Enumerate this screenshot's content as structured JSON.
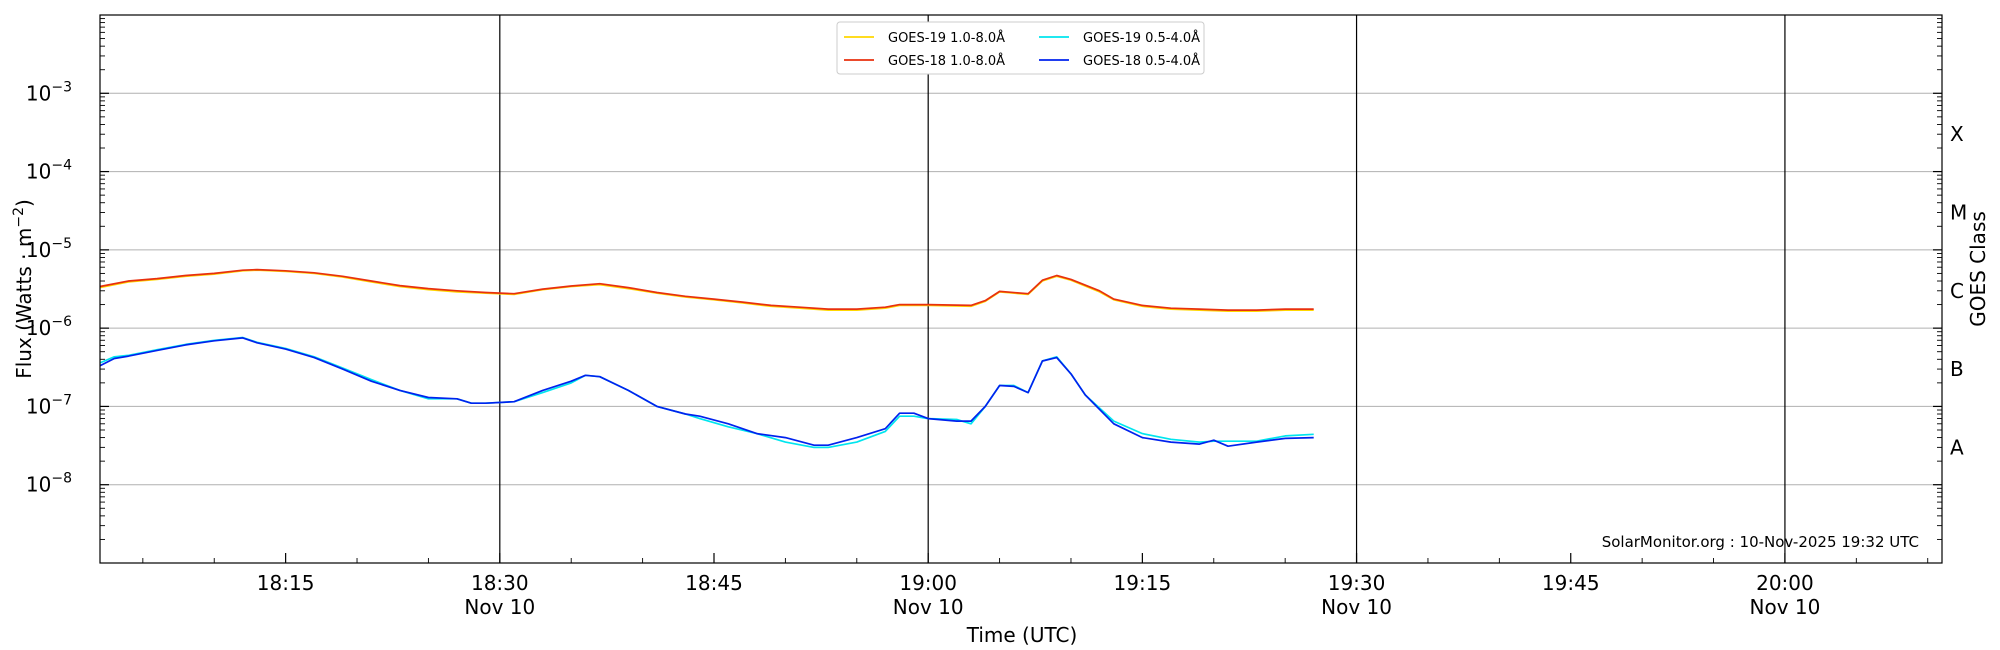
{
  "chart_data": {
    "type": "line",
    "xlabel": "Time (UTC)",
    "ylabel": "Flux (Watts · m",
    "ylabel_exp": "−2",
    "right_axis_label": "GOES Class",
    "credit": "SolarMonitor.org : 10-Nov-2025 19:32 UTC",
    "y_scale": "log",
    "xlim": [
      "18:02",
      "20:11"
    ],
    "ylim": [
      1e-09,
      0.01
    ],
    "grid": "horizontal at decades; vertical lines at half-hours",
    "legend_position": "top-center",
    "x_ticks": [
      {
        "time": "18:15",
        "label": "18:15",
        "sublabel": ""
      },
      {
        "time": "18:30",
        "label": "18:30",
        "sublabel": "Nov 10"
      },
      {
        "time": "18:45",
        "label": "18:45",
        "sublabel": ""
      },
      {
        "time": "19:00",
        "label": "19:00",
        "sublabel": "Nov 10"
      },
      {
        "time": "19:15",
        "label": "19:15",
        "sublabel": ""
      },
      {
        "time": "19:30",
        "label": "19:30",
        "sublabel": "Nov 10"
      },
      {
        "time": "19:45",
        "label": "19:45",
        "sublabel": ""
      },
      {
        "time": "20:00",
        "label": "20:00",
        "sublabel": "Nov 10"
      }
    ],
    "vertical_lines": [
      "18:30",
      "19:00",
      "19:30",
      "20:00"
    ],
    "y_ticks": [
      {
        "value": 1e-08,
        "mantissa": "10",
        "exponent": "−8"
      },
      {
        "value": 1e-07,
        "mantissa": "10",
        "exponent": "−7"
      },
      {
        "value": 1e-06,
        "mantissa": "10",
        "exponent": "−6"
      },
      {
        "value": 1e-05,
        "mantissa": "10",
        "exponent": "−5"
      },
      {
        "value": 0.0001,
        "mantissa": "10",
        "exponent": "−4"
      },
      {
        "value": 0.001,
        "mantissa": "10",
        "exponent": "−3"
      }
    ],
    "goes_classes": [
      {
        "label": "X",
        "flux": 0.0003
      },
      {
        "label": "M",
        "flux": 3e-05
      },
      {
        "label": "C",
        "flux": 3e-06
      },
      {
        "label": "B",
        "flux": 3e-07
      },
      {
        "label": "A",
        "flux": 3e-08
      }
    ],
    "series": [
      {
        "name": "GOES-19 1.0-8.0Å",
        "color": "#ffd700",
        "x": [
          "18:02",
          "18:04",
          "18:06",
          "18:08",
          "18:10",
          "18:12",
          "18:13",
          "18:15",
          "18:17",
          "18:19",
          "18:21",
          "18:23",
          "18:25",
          "18:27",
          "18:29",
          "18:31",
          "18:33",
          "18:35",
          "18:37",
          "18:39",
          "18:41",
          "18:43",
          "18:45",
          "18:47",
          "18:49",
          "18:51",
          "18:53",
          "18:55",
          "18:57",
          "18:58",
          "19:00",
          "19:03",
          "19:04",
          "19:05",
          "19:07",
          "19:08",
          "19:09",
          "19:10",
          "19:12",
          "19:13",
          "19:15",
          "19:17",
          "19:19",
          "19:21",
          "19:23",
          "19:25",
          "19:27"
        ],
        "y": [
          3.3e-06,
          3.9e-06,
          4.2e-06,
          4.6e-06,
          4.9e-06,
          5.4e-06,
          5.5e-06,
          5.3e-06,
          5e-06,
          4.5e-06,
          3.9e-06,
          3.4e-06,
          3.1e-06,
          2.9e-06,
          2.8e-06,
          2.7e-06,
          3.1e-06,
          3.4e-06,
          3.6e-06,
          3.2e-06,
          2.8e-06,
          2.5e-06,
          2.3e-06,
          2.1e-06,
          1.9e-06,
          1.8e-06,
          1.7e-06,
          1.7e-06,
          1.8e-06,
          1.95e-06,
          1.95e-06,
          1.9e-06,
          2.2e-06,
          2.9e-06,
          2.7e-06,
          4e-06,
          4.6e-06,
          4.1e-06,
          2.9e-06,
          2.3e-06,
          1.9e-06,
          1.75e-06,
          1.7e-06,
          1.65e-06,
          1.65e-06,
          1.7e-06,
          1.7e-06
        ]
      },
      {
        "name": "GOES-18 1.0-8.0Å",
        "color": "#e8300e",
        "x": [
          "18:02",
          "18:04",
          "18:06",
          "18:08",
          "18:10",
          "18:12",
          "18:13",
          "18:15",
          "18:17",
          "18:19",
          "18:21",
          "18:23",
          "18:25",
          "18:27",
          "18:29",
          "18:31",
          "18:33",
          "18:35",
          "18:37",
          "18:39",
          "18:41",
          "18:43",
          "18:45",
          "18:47",
          "18:49",
          "18:51",
          "18:53",
          "18:55",
          "18:57",
          "18:58",
          "19:00",
          "19:03",
          "19:04",
          "19:05",
          "19:07",
          "19:08",
          "19:09",
          "19:10",
          "19:12",
          "19:13",
          "19:15",
          "19:17",
          "19:19",
          "19:21",
          "19:23",
          "19:25",
          "19:27"
        ],
        "y": [
          3.4e-06,
          4e-06,
          4.3e-06,
          4.7e-06,
          5e-06,
          5.5e-06,
          5.6e-06,
          5.4e-06,
          5.1e-06,
          4.6e-06,
          4e-06,
          3.5e-06,
          3.2e-06,
          3e-06,
          2.85e-06,
          2.75e-06,
          3.15e-06,
          3.45e-06,
          3.7e-06,
          3.3e-06,
          2.85e-06,
          2.55e-06,
          2.35e-06,
          2.15e-06,
          1.95e-06,
          1.85e-06,
          1.75e-06,
          1.75e-06,
          1.85e-06,
          2e-06,
          2e-06,
          1.95e-06,
          2.25e-06,
          2.95e-06,
          2.75e-06,
          4.1e-06,
          4.7e-06,
          4.2e-06,
          3e-06,
          2.35e-06,
          1.95e-06,
          1.8e-06,
          1.75e-06,
          1.7e-06,
          1.7e-06,
          1.75e-06,
          1.75e-06
        ]
      },
      {
        "name": "GOES-19 0.5-4.0Å",
        "color": "#00e5ee",
        "x": [
          "18:02",
          "18:03",
          "18:04",
          "18:06",
          "18:08",
          "18:10",
          "18:12",
          "18:13",
          "18:15",
          "18:17",
          "18:19",
          "18:21",
          "18:23",
          "18:25",
          "18:27",
          "18:28",
          "18:29",
          "18:31",
          "18:33",
          "18:35",
          "18:36",
          "18:37",
          "18:39",
          "18:41",
          "18:43",
          "18:44",
          "18:46",
          "18:48",
          "18:50",
          "18:52",
          "18:53",
          "18:55",
          "18:57",
          "18:58",
          "18:59",
          "19:00",
          "19:02",
          "19:03",
          "19:04",
          "19:05",
          "19:06",
          "19:07",
          "19:08",
          "19:09",
          "19:10",
          "19:11",
          "19:13",
          "19:15",
          "19:17",
          "19:19",
          "19:20",
          "19:21",
          "19:23",
          "19:25",
          "19:27"
        ],
        "y": [
          3.6e-07,
          4.3e-07,
          4.5e-07,
          5.3e-07,
          6.2e-07,
          7e-07,
          7.6e-07,
          6.6e-07,
          5.5e-07,
          4.3e-07,
          3.1e-07,
          2.2e-07,
          1.6e-07,
          1.25e-07,
          1.25e-07,
          1.1e-07,
          1.1e-07,
          1.15e-07,
          1.5e-07,
          2e-07,
          2.5e-07,
          2.4e-07,
          1.6e-07,
          1e-07,
          8e-08,
          7e-08,
          5.5e-08,
          4.5e-08,
          3.5e-08,
          3e-08,
          3e-08,
          3.5e-08,
          4.8e-08,
          7.5e-08,
          7.5e-08,
          7e-08,
          6.8e-08,
          6e-08,
          1e-07,
          1.85e-07,
          1.85e-07,
          1.5e-07,
          3.8e-07,
          4.3e-07,
          2.6e-07,
          1.4e-07,
          6.5e-08,
          4.5e-08,
          3.8e-08,
          3.5e-08,
          3.6e-08,
          3.6e-08,
          3.6e-08,
          4.2e-08,
          4.4e-08
        ]
      },
      {
        "name": "GOES-18 0.5-4.0Å",
        "color": "#0022ee",
        "x": [
          "18:02",
          "18:03",
          "18:04",
          "18:06",
          "18:08",
          "18:10",
          "18:12",
          "18:13",
          "18:15",
          "18:17",
          "18:19",
          "18:21",
          "18:23",
          "18:25",
          "18:27",
          "18:28",
          "18:29",
          "18:31",
          "18:33",
          "18:35",
          "18:36",
          "18:37",
          "18:39",
          "18:41",
          "18:43",
          "18:44",
          "18:46",
          "18:48",
          "18:50",
          "18:52",
          "18:53",
          "18:55",
          "18:57",
          "18:58",
          "18:59",
          "19:00",
          "19:02",
          "19:03",
          "19:04",
          "19:05",
          "19:06",
          "19:07",
          "19:08",
          "19:09",
          "19:10",
          "19:11",
          "19:13",
          "19:15",
          "19:17",
          "19:19",
          "19:20",
          "19:21",
          "19:23",
          "19:25",
          "19:27"
        ],
        "y": [
          3.3e-07,
          4.1e-07,
          4.4e-07,
          5.2e-07,
          6.1e-07,
          6.9e-07,
          7.5e-07,
          6.5e-07,
          5.4e-07,
          4.2e-07,
          3e-07,
          2.1e-07,
          1.6e-07,
          1.3e-07,
          1.25e-07,
          1.1e-07,
          1.1e-07,
          1.15e-07,
          1.6e-07,
          2.1e-07,
          2.5e-07,
          2.4e-07,
          1.6e-07,
          1e-07,
          8e-08,
          7.5e-08,
          6e-08,
          4.5e-08,
          4e-08,
          3.2e-08,
          3.2e-08,
          4e-08,
          5.2e-08,
          8.2e-08,
          8.2e-08,
          7e-08,
          6.5e-08,
          6.5e-08,
          1e-07,
          1.85e-07,
          1.8e-07,
          1.5e-07,
          3.8e-07,
          4.2e-07,
          2.6e-07,
          1.4e-07,
          6e-08,
          4e-08,
          3.5e-08,
          3.3e-08,
          3.7e-08,
          3.1e-08,
          3.5e-08,
          3.9e-08,
          4e-08
        ]
      }
    ]
  }
}
